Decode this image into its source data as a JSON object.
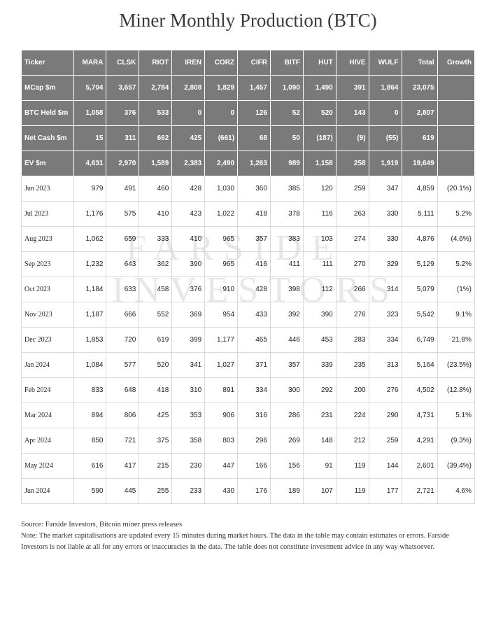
{
  "title": "Miner Monthly Production (BTC)",
  "watermark_line1": "FARSIDE",
  "watermark_line2": "INVESTORS",
  "table": {
    "header_bg": "#7a7a7a",
    "header_fg": "#ffffff",
    "grid_color": "#d9d9d9",
    "font_size": 10,
    "columns": [
      "Ticker",
      "MARA",
      "CLSK",
      "RIOT",
      "IREN",
      "CORZ",
      "CIFR",
      "BITF",
      "HUT",
      "HIVE",
      "WULF",
      "Total",
      "Growth"
    ],
    "summary_rows": [
      {
        "label": "MCap $m",
        "vals": [
          "5,704",
          "3,657",
          "2,784",
          "2,808",
          "1,829",
          "1,457",
          "1,090",
          "1,490",
          "391",
          "1,864",
          "23,075",
          ""
        ]
      },
      {
        "label": "BTC Held $m",
        "vals": [
          "1,058",
          "376",
          "533",
          "0",
          "0",
          "126",
          "52",
          "520",
          "143",
          "0",
          "2,807",
          ""
        ]
      },
      {
        "label": "Net Cash $m",
        "vals": [
          "15",
          "311",
          "662",
          "425",
          "(661)",
          "68",
          "50",
          "(187)",
          "(9)",
          "(55)",
          "619",
          ""
        ]
      },
      {
        "label": "EV $m",
        "vals": [
          "4,631",
          "2,970",
          "1,589",
          "2,383",
          "2,490",
          "1,263",
          "989",
          "1,158",
          "258",
          "1,919",
          "19,649",
          ""
        ]
      }
    ],
    "data_rows": [
      {
        "label": "Jun 2023",
        "vals": [
          "979",
          "491",
          "460",
          "428",
          "1,030",
          "360",
          "385",
          "120",
          "259",
          "347",
          "4,859",
          "(20.1%)"
        ]
      },
      {
        "label": "Jul 2023",
        "vals": [
          "1,176",
          "575",
          "410",
          "423",
          "1,022",
          "418",
          "378",
          "116",
          "263",
          "330",
          "5,111",
          "5.2%"
        ]
      },
      {
        "label": "Aug 2023",
        "vals": [
          "1,062",
          "659",
          "333",
          "410",
          "965",
          "357",
          "383",
          "103",
          "274",
          "330",
          "4,876",
          "(4.6%)"
        ]
      },
      {
        "label": "Sep 2023",
        "vals": [
          "1,232",
          "643",
          "362",
          "390",
          "965",
          "416",
          "411",
          "111",
          "270",
          "329",
          "5,129",
          "5.2%"
        ]
      },
      {
        "label": "Oct 2023",
        "vals": [
          "1,184",
          "633",
          "458",
          "376",
          "910",
          "428",
          "398",
          "112",
          "266",
          "314",
          "5,079",
          "(1%)"
        ]
      },
      {
        "label": "Nov 2023",
        "vals": [
          "1,187",
          "666",
          "552",
          "369",
          "954",
          "433",
          "392",
          "390",
          "276",
          "323",
          "5,542",
          "9.1%"
        ]
      },
      {
        "label": "Dec 2023",
        "vals": [
          "1,853",
          "720",
          "619",
          "399",
          "1,177",
          "465",
          "446",
          "453",
          "283",
          "334",
          "6,749",
          "21.8%"
        ]
      },
      {
        "label": "Jan 2024",
        "vals": [
          "1,084",
          "577",
          "520",
          "341",
          "1,027",
          "371",
          "357",
          "339",
          "235",
          "313",
          "5,164",
          "(23.5%)"
        ]
      },
      {
        "label": "Feb 2024",
        "vals": [
          "833",
          "648",
          "418",
          "310",
          "891",
          "334",
          "300",
          "292",
          "200",
          "276",
          "4,502",
          "(12.8%)"
        ]
      },
      {
        "label": "Mar 2024",
        "vals": [
          "894",
          "806",
          "425",
          "353",
          "906",
          "316",
          "286",
          "231",
          "224",
          "290",
          "4,731",
          "5.1%"
        ]
      },
      {
        "label": "Apr 2024",
        "vals": [
          "850",
          "721",
          "375",
          "358",
          "803",
          "296",
          "269",
          "148",
          "212",
          "259",
          "4,291",
          "(9.3%)"
        ]
      },
      {
        "label": "May 2024",
        "vals": [
          "616",
          "417",
          "215",
          "230",
          "447",
          "166",
          "156",
          "91",
          "119",
          "144",
          "2,601",
          "(39.4%)"
        ]
      },
      {
        "label": "Jun 2024",
        "vals": [
          "590",
          "445",
          "255",
          "233",
          "430",
          "176",
          "189",
          "107",
          "119",
          "177",
          "2,721",
          "4.6%"
        ]
      }
    ]
  },
  "footer": {
    "source": "Source: Farside Investors, Bitcoin miner press releases",
    "note": "Note: The market capitalisations are updated every 15 minutes during market hours. The data in the table may contain estimates or errors. Farside Investors is not liable at all for any errors or inaccuracies in the data. The table does not constitute investment advice in any way whatsoever."
  }
}
